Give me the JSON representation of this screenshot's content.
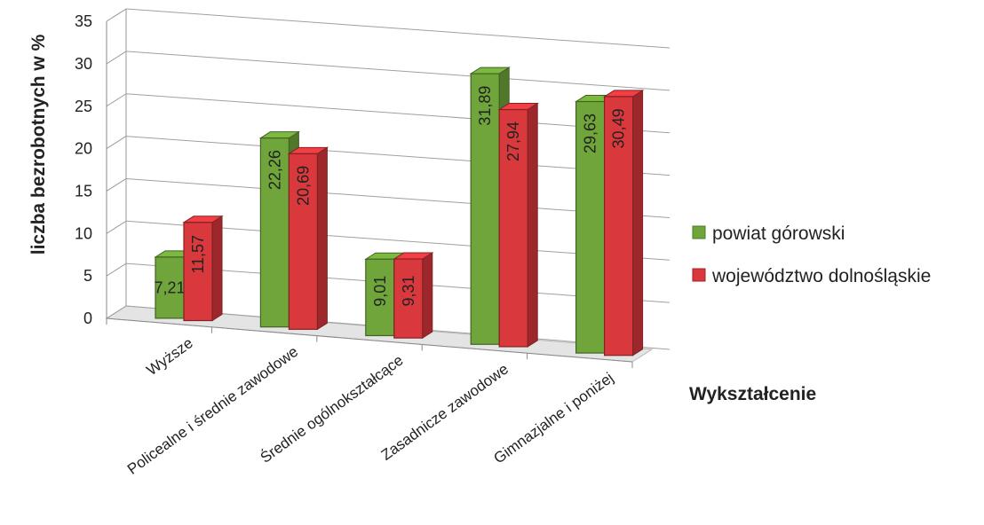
{
  "chart_data": {
    "type": "bar",
    "title": "",
    "xlabel": "Wykształcenie",
    "ylabel": "liczba bezrobotnych w %",
    "ylim": [
      0,
      35
    ],
    "yticks": [
      0,
      5,
      10,
      15,
      20,
      25,
      30,
      35
    ],
    "grid": true,
    "legend_position": "right",
    "categories": [
      "Wyższe",
      "Policealne i średnie zawodowe",
      "Średnie ogólnokształcące",
      "Zasadnicze zawodowe",
      "Gimnazjalne i poniżej"
    ],
    "series": [
      {
        "name": "powiat górowski",
        "color": "#6fa53a",
        "values": [
          7.21,
          22.26,
          9.01,
          31.89,
          29.63
        ],
        "labels": [
          "7,21",
          "22,26",
          "9,01",
          "31,89",
          "29,63"
        ]
      },
      {
        "name": "województwo dolnośląskie",
        "color": "#d9383d",
        "values": [
          11.57,
          20.69,
          9.31,
          27.94,
          30.49
        ],
        "labels": [
          "11,57",
          "20,69",
          "9,31",
          "27,94",
          "30,49"
        ]
      }
    ]
  }
}
